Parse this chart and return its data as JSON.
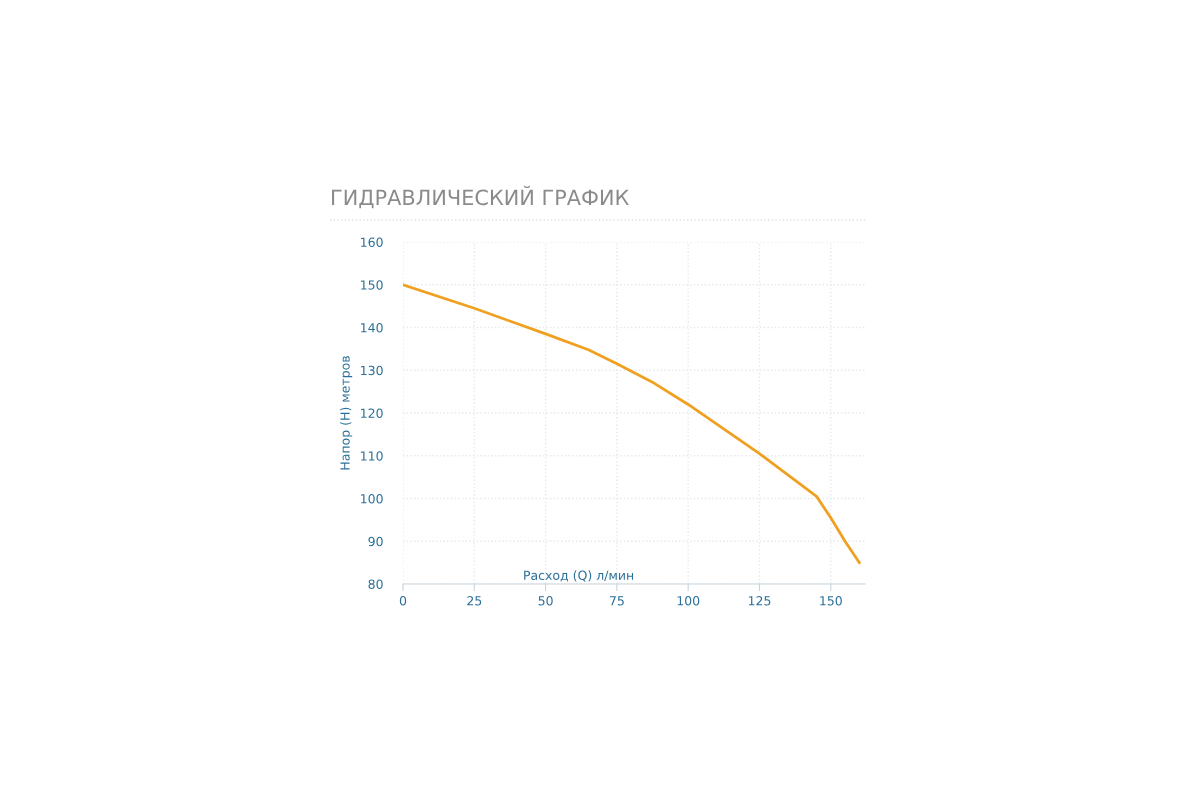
{
  "chart_data": {
    "type": "line",
    "title": "ГИДРАВЛИЧЕСКИЙ ГРАФИК",
    "xlabel": "Расход (Q) л/мин",
    "ylabel": "Напор (H) метров",
    "x": [
      0,
      25,
      50,
      65,
      75,
      88,
      100,
      125,
      145,
      150,
      155,
      160
    ],
    "series": [
      {
        "color": "#f0a020",
        "values": [
          150,
          144.5,
          138.5,
          134.8,
          131.5,
          127,
          122,
          110.5,
          100.5,
          95.5,
          90,
          85
        ]
      }
    ],
    "xlim": [
      0,
      162
    ],
    "xticks": [
      0,
      25,
      50,
      75,
      100,
      125,
      150
    ],
    "ylim": [
      80,
      160
    ],
    "yticks": [
      80,
      90,
      100,
      110,
      120,
      130,
      140,
      150,
      160
    ],
    "grid": true,
    "marker": "none",
    "line_style": "solid"
  }
}
